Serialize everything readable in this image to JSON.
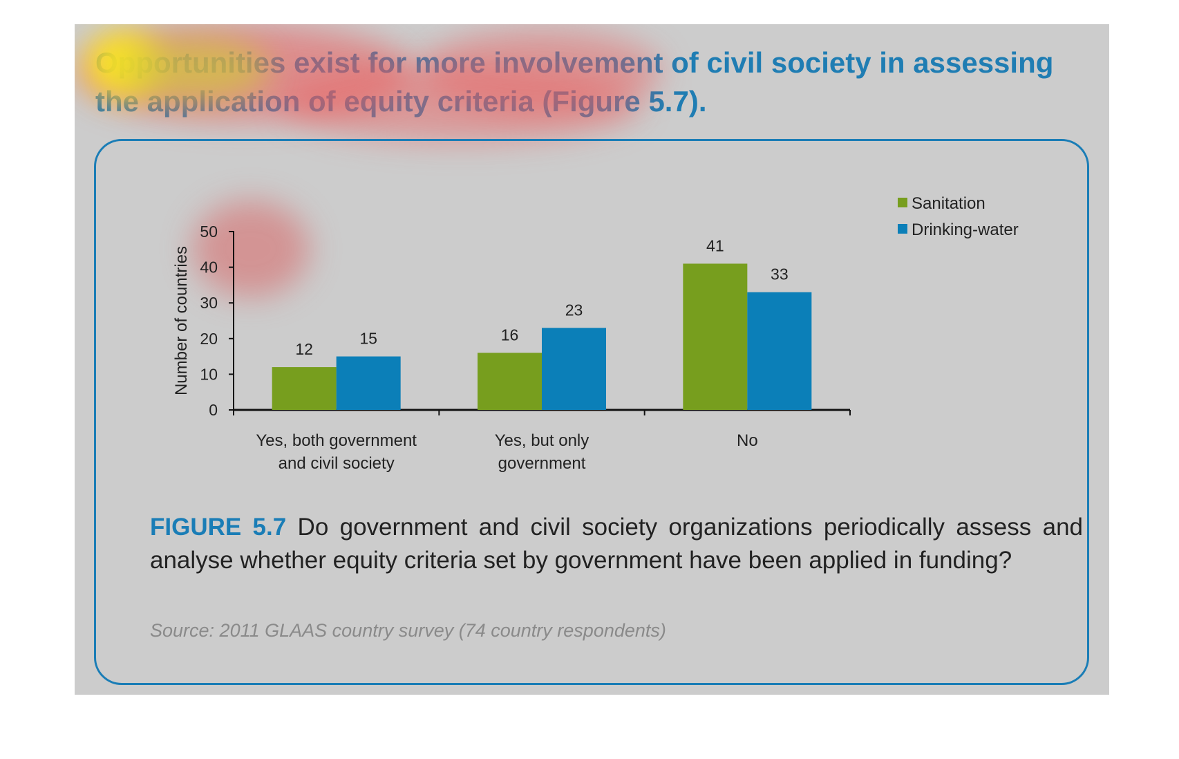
{
  "headline": "Opportunities exist for more involvement of civil society in assessing the application of equity criteria (Figure 5.7).",
  "colors": {
    "background": "#cccccc",
    "accent_blue": "#1a7db6",
    "sanitation": "#779e1e",
    "drinking_water": "#0b7fb8"
  },
  "caption": {
    "figure_label": "FIGURE 5.7",
    "text": " Do government and civil society organizations periodically assess and analyse whether equity criteria set by government have been applied in funding?"
  },
  "source": "Source: 2011 GLAAS country survey (74 country respondents)",
  "chart_data": {
    "type": "bar",
    "title": "",
    "xlabel": "",
    "ylabel": "Number of countries",
    "ylim": [
      0,
      50
    ],
    "yticks": [
      0,
      10,
      20,
      30,
      40,
      50
    ],
    "categories": [
      [
        "Yes, both government",
        "and civil society"
      ],
      [
        "Yes, but only",
        "government"
      ],
      [
        "No"
      ]
    ],
    "series": [
      {
        "name": "Sanitation",
        "color": "#779e1e",
        "values": [
          12,
          16,
          41
        ]
      },
      {
        "name": "Drinking-water",
        "color": "#0b7fb8",
        "values": [
          15,
          23,
          33
        ]
      }
    ],
    "legend_position": "top-right",
    "grid": false,
    "data_labels": true
  }
}
